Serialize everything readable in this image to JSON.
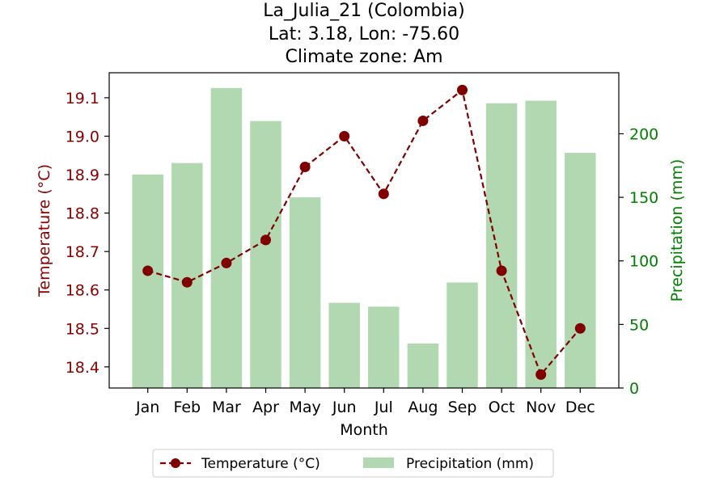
{
  "chart_data": {
    "type": "bar+line",
    "title_lines": [
      "La_Julia_21 (Colombia)",
      "Lat: 3.18, Lon: -75.60",
      "Climate zone: Am"
    ],
    "xlabel": "Month",
    "ylabel_left": "Temperature (°C)",
    "ylabel_right": "Precipitation (mm)",
    "categories": [
      "Jan",
      "Feb",
      "Mar",
      "Apr",
      "May",
      "Jun",
      "Jul",
      "Aug",
      "Sep",
      "Oct",
      "Nov",
      "Dec"
    ],
    "series": [
      {
        "name": "Precipitation (mm)",
        "kind": "bar",
        "axis": "right",
        "color": "#b2d8b2",
        "values": [
          168,
          177,
          236,
          210,
          150,
          67,
          64,
          35,
          83,
          224,
          226,
          185
        ]
      },
      {
        "name": "Temperature (°C)",
        "kind": "line",
        "axis": "left",
        "color": "#800000",
        "line_style": "dashed",
        "marker": "circle",
        "values": [
          18.65,
          18.62,
          18.67,
          18.73,
          18.92,
          19.0,
          18.85,
          19.04,
          19.12,
          18.65,
          18.38,
          18.5
        ]
      }
    ],
    "y_left": {
      "range": [
        18.345,
        19.165
      ],
      "ticks": [
        18.4,
        18.5,
        18.6,
        18.7,
        18.8,
        18.9,
        19.0,
        19.1
      ],
      "tick_labels": [
        "18.4",
        "18.5",
        "18.6",
        "18.7",
        "18.8",
        "18.9",
        "19.0",
        "19.1"
      ],
      "color": "#8b0000"
    },
    "y_right": {
      "range": [
        0,
        248
      ],
      "ticks": [
        0,
        50,
        100,
        150,
        200
      ],
      "tick_labels": [
        "0",
        "50",
        "100",
        "150",
        "200"
      ],
      "color": "#008000"
    },
    "grid": false,
    "legend_position": "bottom-center",
    "legend_entries": [
      "Temperature (°C)",
      "Precipitation (mm)"
    ]
  }
}
